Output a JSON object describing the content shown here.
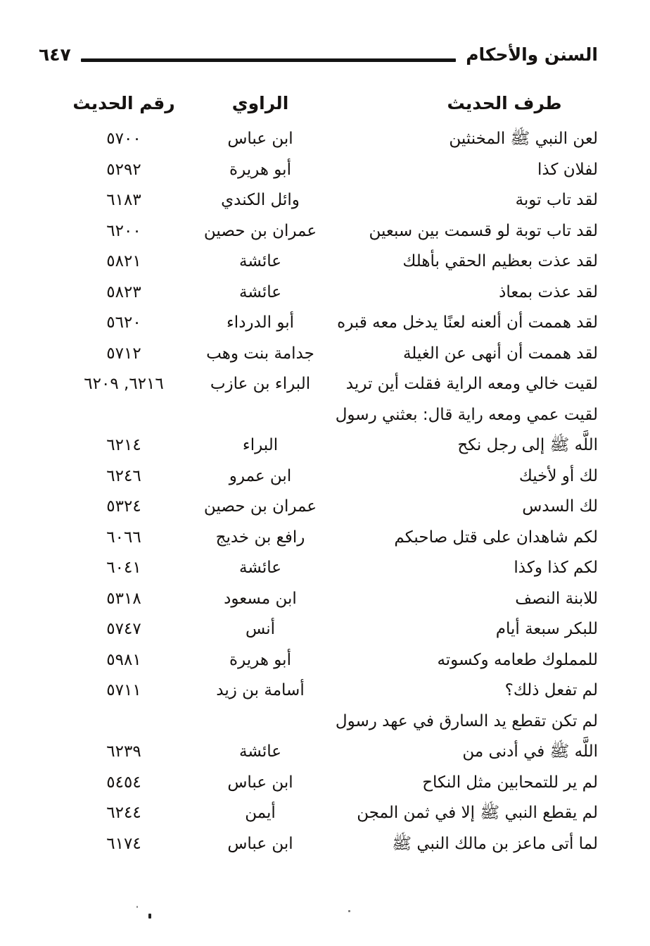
{
  "header": {
    "book_title": "السنن والأحكام",
    "page_number": "٦٤٧"
  },
  "table": {
    "columns": {
      "hadith": "طرف الحديث",
      "narrator": "الراوي",
      "number": "رقم الحديث"
    },
    "rows": [
      {
        "text": "لعن النبي ﷺ المخنثين",
        "narrator": "ابن عباس",
        "number": "٥٧٠٠"
      },
      {
        "text": "لفلان كذا",
        "narrator": "أبو هريرة",
        "number": "٥٢٩٢"
      },
      {
        "text": "لقد تاب توبة",
        "narrator": "وائل الكندي",
        "number": "٦١٨٣"
      },
      {
        "text": "لقد تاب توبة لو قسمت بين سبعين",
        "narrator": "عمران بن حصين",
        "number": "٦٢٠٠"
      },
      {
        "text": "لقد عذت بعظيم الحقي بأهلك",
        "narrator": "عائشة",
        "number": "٥٨٢١"
      },
      {
        "text": "لقد عذت بمعاذ",
        "narrator": "عائشة",
        "number": "٥٨٢٣"
      },
      {
        "text": "لقد هممت أن ألعنه لعنًا يدخل معه قبره",
        "narrator": "أبو الدرداء",
        "number": "٥٦٢٠"
      },
      {
        "text": "لقد هممت أن أنهى عن الغيلة",
        "narrator": "جدامة بنت وهب",
        "number": "٥٧١٢"
      },
      {
        "text": "لقيت خالي ومعه الراية فقلت أين تريد",
        "narrator": "البراء بن عازب",
        "number": "٦٢١٦, ٦٢٠٩"
      },
      {
        "text": "لقيت عمي ومعه راية قال: بعثني رسول",
        "narrator": "",
        "number": ""
      },
      {
        "text": "اللَّه ﷺ إلى رجل نكح",
        "narrator": "البراء",
        "number": "٦٢١٤"
      },
      {
        "text": "لك أو لأخيك",
        "narrator": "ابن عمرو",
        "number": "٦٢٤٦"
      },
      {
        "text": "لك السدس",
        "narrator": "عمران بن حصين",
        "number": "٥٣٢٤"
      },
      {
        "text": "لكم شاهدان على قتل صاحبكم",
        "narrator": "رافع بن خديج",
        "number": "٦٠٦٦"
      },
      {
        "text": "لكم كذا وكذا",
        "narrator": "عائشة",
        "number": "٦٠٤١"
      },
      {
        "text": "للابنة النصف",
        "narrator": "ابن مسعود",
        "number": "٥٣١٨"
      },
      {
        "text": "للبكر سبعة أيام",
        "narrator": "أنس",
        "number": "٥٧٤٧"
      },
      {
        "text": "للمملوك طعامه وكسوته",
        "narrator": "أبو هريرة",
        "number": "٥٩٨١"
      },
      {
        "text": "لم تفعل ذلك؟",
        "narrator": "أسامة بن زيد",
        "number": "٥٧١١"
      },
      {
        "text": "لم تكن تقطع يد السارق في عهد رسول",
        "narrator": "",
        "number": ""
      },
      {
        "text": "اللَّه ﷺ في أدنى من",
        "narrator": "عائشة",
        "number": "٦٢٣٩"
      },
      {
        "text": "لم ير للتمحابين مثل النكاح",
        "narrator": "ابن عباس",
        "number": "٥٤٥٤"
      },
      {
        "text": "لم يقطع النبي ﷺ إلا في ثمن المجن",
        "narrator": "أيمن",
        "number": "٦٢٤٤"
      },
      {
        "text": "لما أتى ماعز بن مالك النبي ﷺ",
        "narrator": "ابن عباس",
        "number": "٦١٧٤"
      }
    ]
  }
}
